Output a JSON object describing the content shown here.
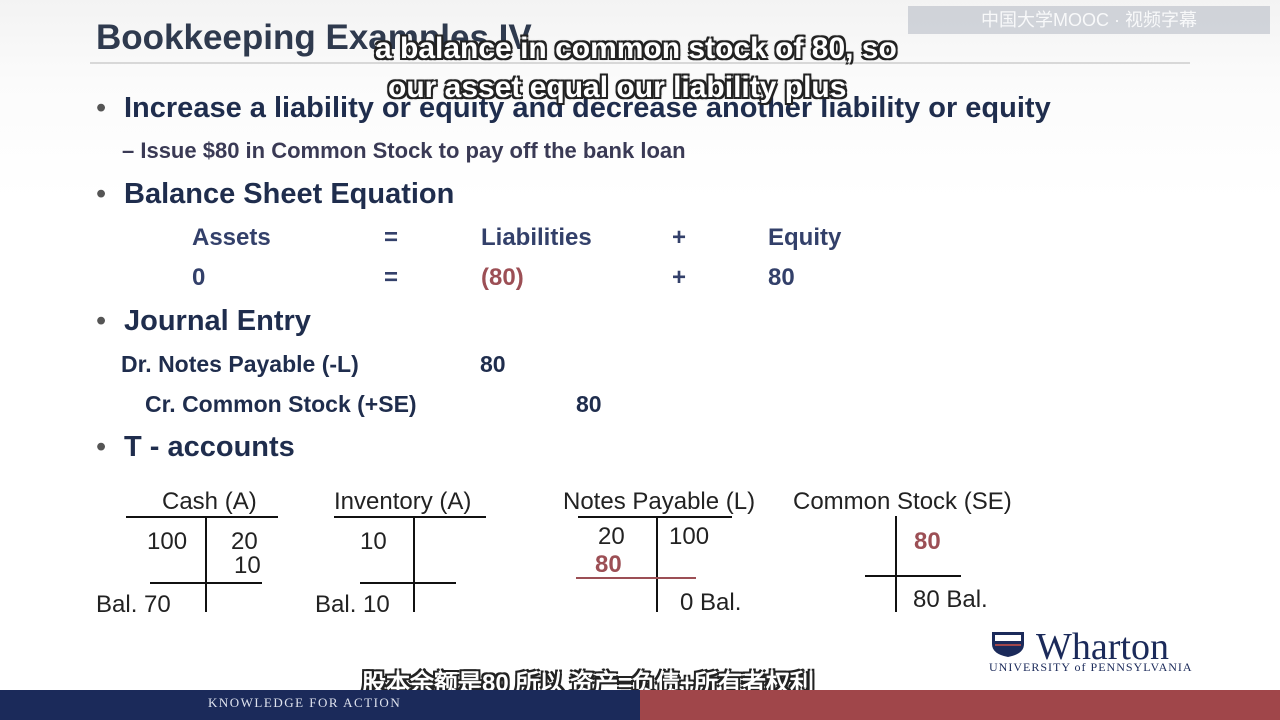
{
  "slide": {
    "title": "Bookkeeping Examples IV",
    "bullets": [
      "Increase a liability or equity and decrease another liability or equity",
      "Balance Sheet Equation",
      "Journal Entry",
      "T - accounts"
    ],
    "sub_bullet": "– Issue $80 in Common Stock to pay off the bank loan",
    "equation": {
      "headers": [
        "Assets",
        "=",
        "Liabilities",
        "+",
        "Equity"
      ],
      "values": [
        "0",
        "=",
        "(80)",
        "+",
        "80"
      ]
    },
    "journal": {
      "dr_label": "Dr. Notes Payable (-L)",
      "dr_amount": "80",
      "cr_label": "Cr. Common Stock (+SE)",
      "cr_amount": "80"
    },
    "t_accounts": {
      "cash": {
        "title": "Cash (A)",
        "debit": "100",
        "credit1": "20",
        "credit2": "10",
        "bal": "Bal.  70"
      },
      "inventory": {
        "title": "Inventory (A)",
        "debit": "10",
        "bal": "Bal. 10"
      },
      "notes": {
        "title": "Notes Payable (L)",
        "debit1": "20",
        "debit2": "80",
        "credit": "100",
        "bal": "0  Bal."
      },
      "stock": {
        "title": "Common Stock (SE)",
        "credit": "80",
        "bal": "80 Bal."
      }
    }
  },
  "captions": {
    "line1": "a balance in common stock of 80, so",
    "line2": "our asset equal our liability plus",
    "chinese": "股本余额是80 所以 资产=负债+所有者权利"
  },
  "watermark": "中国大学MOOC · 视频字幕",
  "footer": {
    "tagline": "KNOWLEDGE FOR ACTION"
  },
  "logo": {
    "name": "Wharton",
    "sub": "UNIVERSITY of PENNSYLVANIA"
  },
  "colors": {
    "navy": "#1b2a5a",
    "accent_red": "#9c4f55"
  }
}
